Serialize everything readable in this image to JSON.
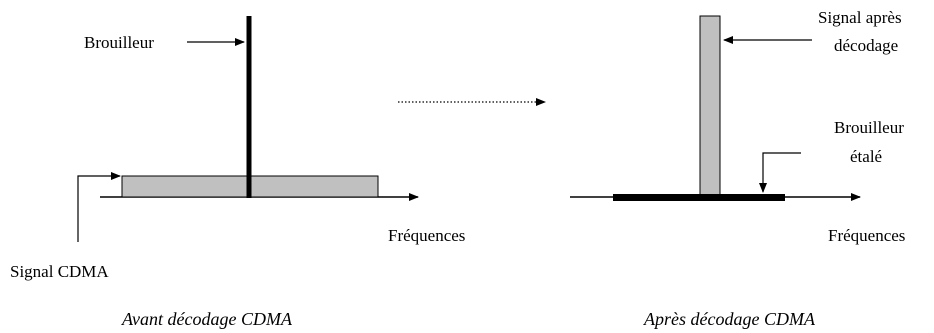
{
  "left_panel": {
    "jammer_label": "Brouilleur",
    "signal_label": "Signal CDMA",
    "axis_label": "Fréquences",
    "caption": "Avant décodage CDMA"
  },
  "right_panel": {
    "signal_label_line1": "Signal après",
    "signal_label_line2": "décodage",
    "spread_jammer_line1": "Brouilleur",
    "spread_jammer_line2": "étalé",
    "axis_label": "Fréquences",
    "caption": "Après décodage CDMA"
  },
  "colors": {
    "signal_fill": "#c0c0c0",
    "stroke": "#000000"
  }
}
